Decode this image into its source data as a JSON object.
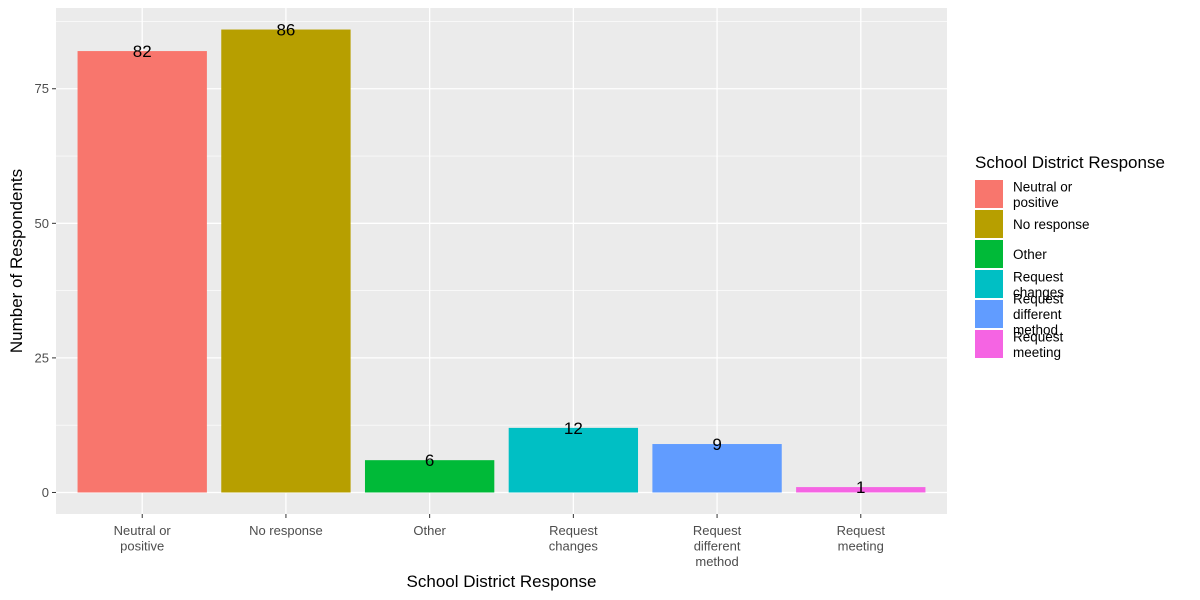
{
  "chart_data": {
    "type": "bar",
    "categories": [
      [
        "Neutral or",
        "positive"
      ],
      [
        "No response"
      ],
      [
        "Other"
      ],
      [
        "Request",
        "changes"
      ],
      [
        "Request",
        "different",
        "method"
      ],
      [
        "Request",
        "meeting"
      ]
    ],
    "values": [
      82,
      86,
      6,
      12,
      9,
      1
    ],
    "data_labels": [
      "82",
      "86",
      "6",
      "12",
      "9",
      "1"
    ],
    "colors": [
      "#F8766D",
      "#B79F00",
      "#00BA38",
      "#00BFC4",
      "#619CFF",
      "#F564E3"
    ],
    "xlabel": "School District Response",
    "ylabel": "Number of Respondents",
    "ylim": [
      -4,
      90
    ],
    "yticks": [
      0,
      25,
      50,
      75
    ],
    "ytick_labels": [
      "0",
      "25",
      "50",
      "75"
    ],
    "grid": true,
    "panel_background": "#EBEBEB",
    "legend": {
      "title": "School District Response",
      "position": "right",
      "entries": [
        [
          "Neutral or",
          "positive"
        ],
        [
          "No response"
        ],
        [
          "Other"
        ],
        [
          "Request",
          "changes"
        ],
        [
          "Request",
          "different",
          "method"
        ],
        [
          "Request",
          "meeting"
        ]
      ]
    }
  }
}
